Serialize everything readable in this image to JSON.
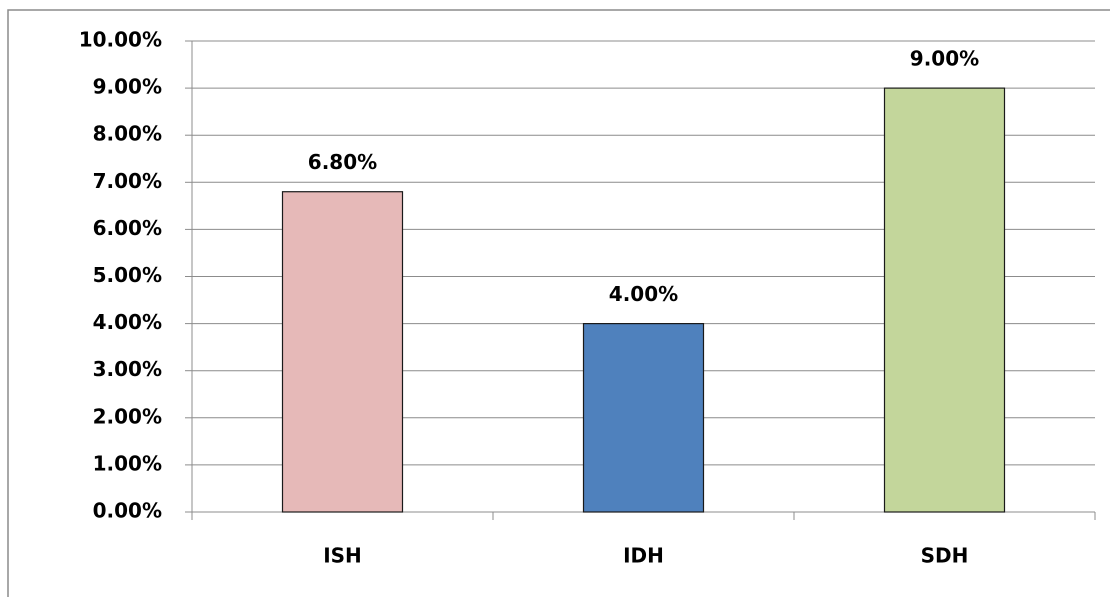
{
  "chart_data": {
    "type": "bar",
    "categories": [
      "ISH",
      "IDH",
      "SDH"
    ],
    "values": [
      6.8,
      4,
      9
    ],
    "value_labels": [
      "6.80%",
      "4.00%",
      "9.00%"
    ],
    "colors": [
      "#e6b9b8",
      "#4f81bd",
      "#c3d69b"
    ],
    "ylim": [
      0,
      10
    ],
    "yticks": [
      {
        "value": 0,
        "label": "0.00%"
      },
      {
        "value": 1,
        "label": "1.00%"
      },
      {
        "value": 2,
        "label": "2.00%"
      },
      {
        "value": 3,
        "label": "3.00%"
      },
      {
        "value": 4,
        "label": "4.00%"
      },
      {
        "value": 5,
        "label": "5.00%"
      },
      {
        "value": 6,
        "label": "6.00%"
      },
      {
        "value": 7,
        "label": "7.00%"
      },
      {
        "value": 8,
        "label": "8.00%"
      },
      {
        "value": 9,
        "label": "9.00%"
      },
      {
        "value": 10,
        "label": "10.00%"
      }
    ],
    "grid": true
  }
}
